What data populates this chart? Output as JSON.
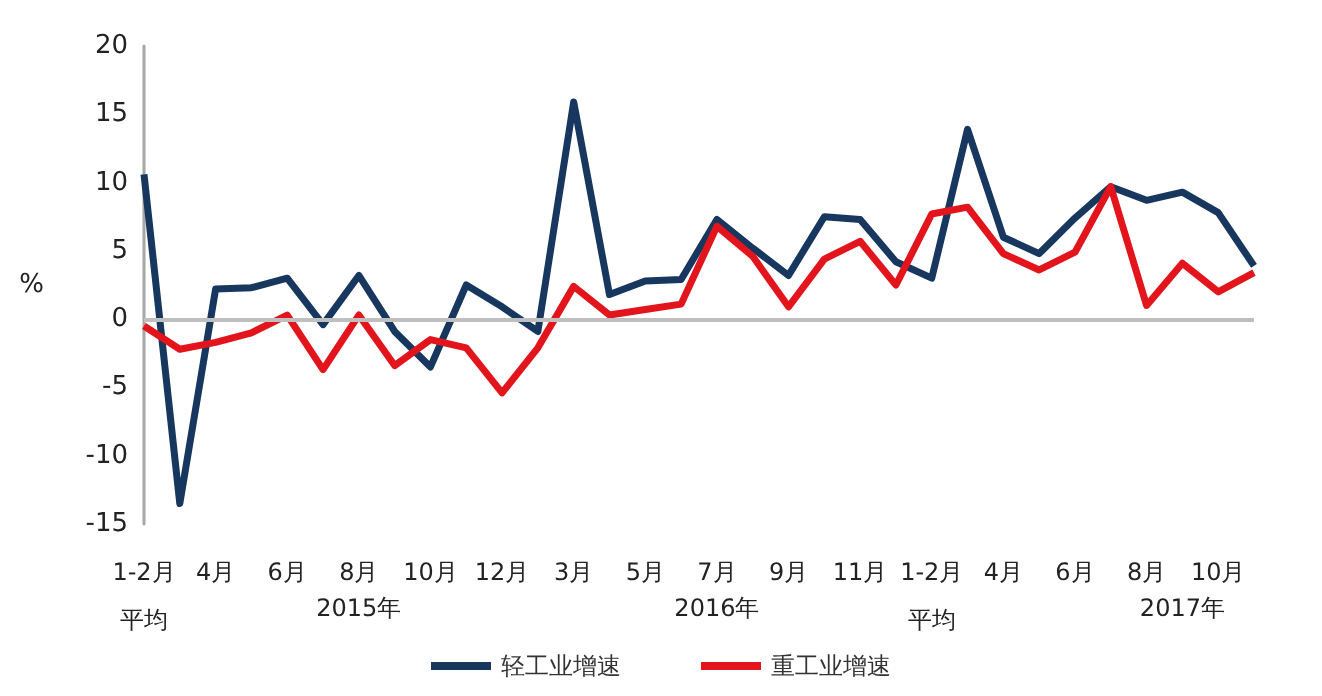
{
  "chart_data": {
    "type": "line",
    "ylabel": "%",
    "categories": [
      "1-2月平均",
      null,
      "4月",
      null,
      "6月",
      null,
      "8月",
      null,
      "10月",
      null,
      "12月",
      null,
      "3月",
      null,
      "5月",
      null,
      "7月",
      null,
      "9月",
      null,
      "11月",
      null,
      "1-2月平均",
      null,
      "4月",
      null,
      "6月",
      null,
      "8月",
      null,
      "10月",
      null
    ],
    "annotations": [
      "2015年",
      "2016年",
      "2017年"
    ],
    "series": [
      {
        "name": "轻工业增速",
        "color": "#17375e",
        "values": [
          10.6,
          -13.5,
          2.2,
          2.3,
          3.0,
          -0.4,
          3.2,
          -0.9,
          -3.5,
          2.5,
          0.9,
          -0.9,
          15.9,
          1.8,
          2.8,
          2.9,
          7.3,
          5.2,
          3.2,
          7.5,
          7.3,
          4.2,
          3.0,
          13.9,
          6.0,
          4.8,
          7.4,
          9.7,
          8.7,
          9.3,
          7.8,
          3.9
        ]
      },
      {
        "name": "重工业增速",
        "color": "#e3151c",
        "values": [
          -0.5,
          -2.2,
          -1.7,
          -1.0,
          0.3,
          -3.7,
          0.3,
          -3.4,
          -1.5,
          -2.1,
          -5.4,
          -2.1,
          2.4,
          0.3,
          0.7,
          1.1,
          6.8,
          4.6,
          0.9,
          4.4,
          5.7,
          2.5,
          7.7,
          8.2,
          4.8,
          3.6,
          4.9,
          9.7,
          1.0,
          4.1,
          2.0,
          3.4
        ]
      }
    ],
    "ylim": [
      -15,
      20
    ],
    "yticks": [
      -15,
      -10,
      -5,
      0,
      5,
      10,
      15,
      20
    ],
    "ref_lines": [
      {
        "axis": "y",
        "value": 0,
        "color": "#bfbfbf"
      }
    ],
    "grid": false,
    "legend": "bottom",
    "marker": "none",
    "line_style": "solid"
  }
}
